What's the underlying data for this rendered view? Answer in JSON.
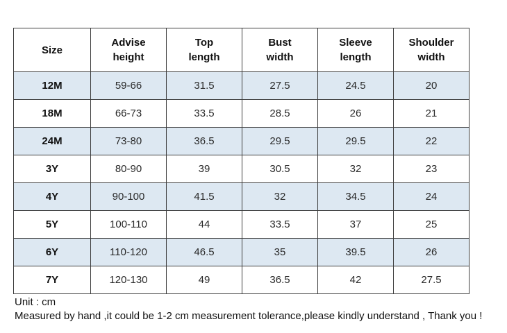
{
  "table": {
    "headers": [
      [
        "Size"
      ],
      [
        "Advise",
        "height"
      ],
      [
        "Top",
        "length"
      ],
      [
        "Bust",
        "width"
      ],
      [
        "Sleeve",
        "length"
      ],
      [
        "Shoulder",
        "width"
      ]
    ],
    "rows": [
      [
        "12M",
        "59-66",
        "31.5",
        "27.5",
        "24.5",
        "20"
      ],
      [
        "18M",
        "66-73",
        "33.5",
        "28.5",
        "26",
        "21"
      ],
      [
        "24M",
        "73-80",
        "36.5",
        "29.5",
        "29.5",
        "22"
      ],
      [
        "3Y",
        "80-90",
        "39",
        "30.5",
        "32",
        "23"
      ],
      [
        "4Y",
        "90-100",
        "41.5",
        "32",
        "34.5",
        "24"
      ],
      [
        "5Y",
        "100-110",
        "44",
        "33.5",
        "37",
        "25"
      ],
      [
        "6Y",
        "110-120",
        "46.5",
        "35",
        "39.5",
        "26"
      ],
      [
        "7Y",
        "120-130",
        "49",
        "36.5",
        "42",
        "27.5"
      ]
    ],
    "shade_color": "#dde8f2",
    "border_color": "#3c3c3c"
  },
  "notes": {
    "unit": "Unit : cm",
    "tolerance": "Measured by hand ,it could be 1-2 cm measurement tolerance,please kindly understand , Thank you !"
  }
}
